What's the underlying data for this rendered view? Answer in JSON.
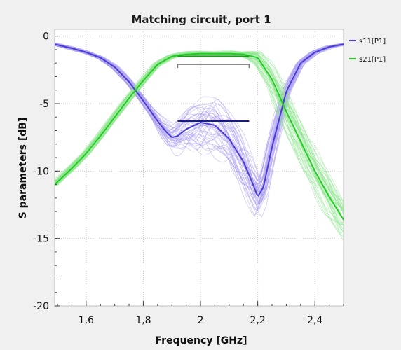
{
  "chart_data": {
    "type": "line",
    "title": "Matching circuit, port 1",
    "xlabel": "Frequency [GHz]",
    "ylabel": "S parameters [dB]",
    "xlim": [
      1.49,
      2.5
    ],
    "ylim": [
      -20,
      0.5
    ],
    "x_ticks": [
      1.6,
      1.8,
      2.0,
      2.2,
      2.4
    ],
    "x_tick_labels": [
      "1,6",
      "1,8",
      "2",
      "2,2",
      "2,4"
    ],
    "y_ticks": [
      0,
      -5,
      -10,
      -15,
      -20
    ],
    "y_tick_labels": [
      "0",
      "-5",
      "-10",
      "-15",
      "-20"
    ],
    "grid": true,
    "legend_position": "right",
    "series": [
      {
        "name": "s11[P1]",
        "color": "#4a3cd6",
        "band_color": "#a99cf0",
        "x": [
          1.49,
          1.55,
          1.6,
          1.65,
          1.7,
          1.75,
          1.8,
          1.85,
          1.88,
          1.9,
          1.92,
          1.95,
          2.0,
          2.05,
          2.1,
          2.15,
          2.18,
          2.2,
          2.22,
          2.25,
          2.3,
          2.35,
          2.4,
          2.45,
          2.5
        ],
        "values": [
          -0.6,
          -0.9,
          -1.2,
          -1.6,
          -2.3,
          -3.4,
          -4.8,
          -6.3,
          -7.1,
          -7.5,
          -7.4,
          -6.9,
          -6.4,
          -6.6,
          -7.6,
          -9.3,
          -10.8,
          -11.9,
          -11.2,
          -8.2,
          -4.1,
          -2.0,
          -1.2,
          -0.8,
          -0.6
        ]
      },
      {
        "name": "s21[P1]",
        "color": "#22cc22",
        "band_color": "#8ee68e",
        "x": [
          1.49,
          1.55,
          1.6,
          1.65,
          1.7,
          1.75,
          1.8,
          1.85,
          1.9,
          1.95,
          2.0,
          2.05,
          2.1,
          2.15,
          2.2,
          2.25,
          2.3,
          2.35,
          2.4,
          2.45,
          2.5
        ],
        "values": [
          -11.0,
          -9.8,
          -8.7,
          -7.4,
          -6.0,
          -4.6,
          -3.3,
          -2.1,
          -1.5,
          -1.35,
          -1.3,
          -1.3,
          -1.3,
          -1.35,
          -1.6,
          -3.2,
          -5.6,
          -7.8,
          -10.0,
          -11.9,
          -13.6
        ]
      }
    ],
    "annotations": [
      {
        "type": "goal-line",
        "color": "#1a1a80",
        "x": [
          1.92,
          2.17
        ],
        "y": -6.3
      },
      {
        "type": "goal-line",
        "color": "#1f9a1f",
        "x": [
          1.92,
          2.17
        ],
        "y": -1.5
      },
      {
        "type": "bracket",
        "color": "#7a7a7a",
        "x": [
          1.92,
          2.17
        ],
        "y": -2.1
      }
    ]
  }
}
